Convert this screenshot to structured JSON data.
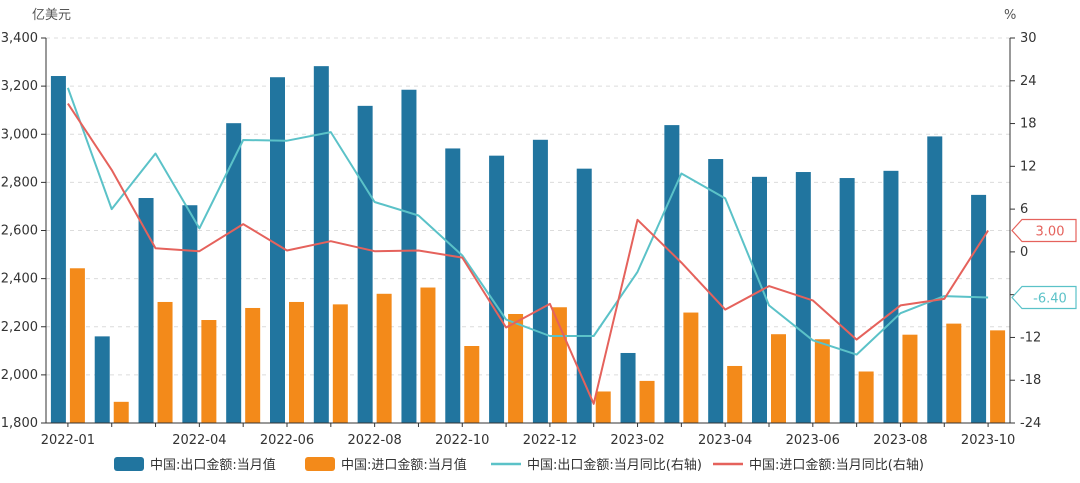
{
  "chart_data": {
    "type": "bar",
    "left_unit": "亿美元",
    "right_unit": "%",
    "y_left": {
      "min": 1800,
      "max": 3400,
      "ticks": [
        "1,800",
        "2,000",
        "2,200",
        "2,400",
        "2,600",
        "2,800",
        "3,000",
        "3,200",
        "3,400"
      ]
    },
    "y_right": {
      "min": -24,
      "max": 30,
      "ticks": [
        "-24",
        "-18",
        "-12",
        "-6",
        "0",
        "6",
        "12",
        "18",
        "24",
        "30"
      ]
    },
    "categories": [
      "2022-01",
      "2022-02",
      "2022-03",
      "2022-04",
      "2022-05",
      "2022-06",
      "2022-07",
      "2022-08",
      "2022-09",
      "2022-10",
      "2022-11",
      "2022-12",
      "2023-01",
      "2023-02",
      "2023-03",
      "2023-04",
      "2023-05",
      "2023-06",
      "2023-07",
      "2023-08",
      "2023-09",
      "2023-10"
    ],
    "x_tick_labels": [
      "2022-01",
      "2022-04",
      "2022-06",
      "2022-08",
      "2022-10",
      "2022-12",
      "2023-02",
      "2023-04",
      "2023-06",
      "2023-08",
      "2023-10"
    ],
    "series": [
      {
        "name": "中国:出口金额:当月值",
        "kind": "bar",
        "axis": "left",
        "color": "#21759f",
        "values": [
          3242,
          2160,
          2735,
          2705,
          3046,
          3237,
          3283,
          3118,
          3185,
          2941,
          2911,
          2977,
          2857,
          2091,
          3038,
          2897,
          2823,
          2843,
          2818,
          2848,
          2991,
          2748
        ]
      },
      {
        "name": "中国:进口金额:当月值",
        "kind": "bar",
        "axis": "left",
        "color": "#f38a1a",
        "values": [
          2443,
          1888,
          2303,
          2228,
          2278,
          2303,
          2293,
          2337,
          2363,
          2120,
          2253,
          2281,
          1931,
          1975,
          2259,
          2037,
          2169,
          2148,
          2014,
          2167,
          2213,
          2185
        ]
      },
      {
        "name": "中国:出口金额:当月同比(右轴)",
        "kind": "line",
        "axis": "right",
        "color": "#5bc2c8",
        "values": [
          23.0,
          6.0,
          13.8,
          3.3,
          15.7,
          15.6,
          16.8,
          7.0,
          5.1,
          -0.5,
          -9.5,
          -11.8,
          -11.8,
          -2.8,
          11.0,
          7.5,
          -7.5,
          -12.4,
          -14.4,
          -8.6,
          -6.2,
          -6.4
        ]
      },
      {
        "name": "中国:进口金额:当月同比(右轴)",
        "kind": "line",
        "axis": "right",
        "color": "#e5625c",
        "values": [
          20.8,
          11.5,
          0.5,
          0.1,
          3.9,
          0.2,
          1.5,
          0.1,
          0.2,
          -0.8,
          -10.6,
          -7.3,
          -21.3,
          4.5,
          -1.5,
          -8.1,
          -4.8,
          -6.8,
          -12.3,
          -7.5,
          -6.6,
          3.0
        ]
      }
    ],
    "badges": [
      {
        "text": "3.00",
        "color": "#e5625c",
        "value": 3.0
      },
      {
        "text": "-6.40",
        "color": "#5bc2c8",
        "value": -6.4
      }
    ],
    "legend_position": "bottom-center",
    "grid": "horizontal dashed"
  }
}
